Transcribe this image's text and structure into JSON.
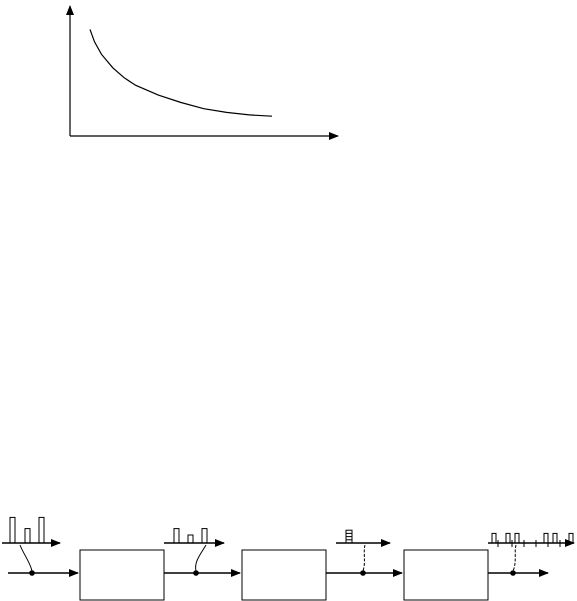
{
  "chart_data": {
    "type": "line",
    "title": "",
    "xlabel": "",
    "ylabel": "",
    "grid": false,
    "series": [
      {
        "x": [
          0.0,
          0.02,
          0.05,
          0.1,
          0.15,
          0.2,
          0.3,
          0.4,
          0.5,
          0.6,
          0.7,
          0.8
        ],
        "y": [
          0.86,
          0.76,
          0.66,
          0.55,
          0.47,
          0.41,
          0.33,
          0.27,
          0.22,
          0.19,
          0.17,
          0.16
        ]
      }
    ]
  },
  "diagram": {
    "blocks": [
      "",
      "",
      ""
    ],
    "stage_signals": [
      {
        "pulses": [
          0.8,
          0.45,
          0.8
        ]
      },
      {
        "pulses": [
          0.45,
          0.25,
          0.45
        ]
      },
      {
        "pulses": [
          0.4
        ]
      },
      {
        "pulses": [
          0.3,
          0.3,
          0.3,
          0.3,
          0.3
        ]
      }
    ]
  }
}
